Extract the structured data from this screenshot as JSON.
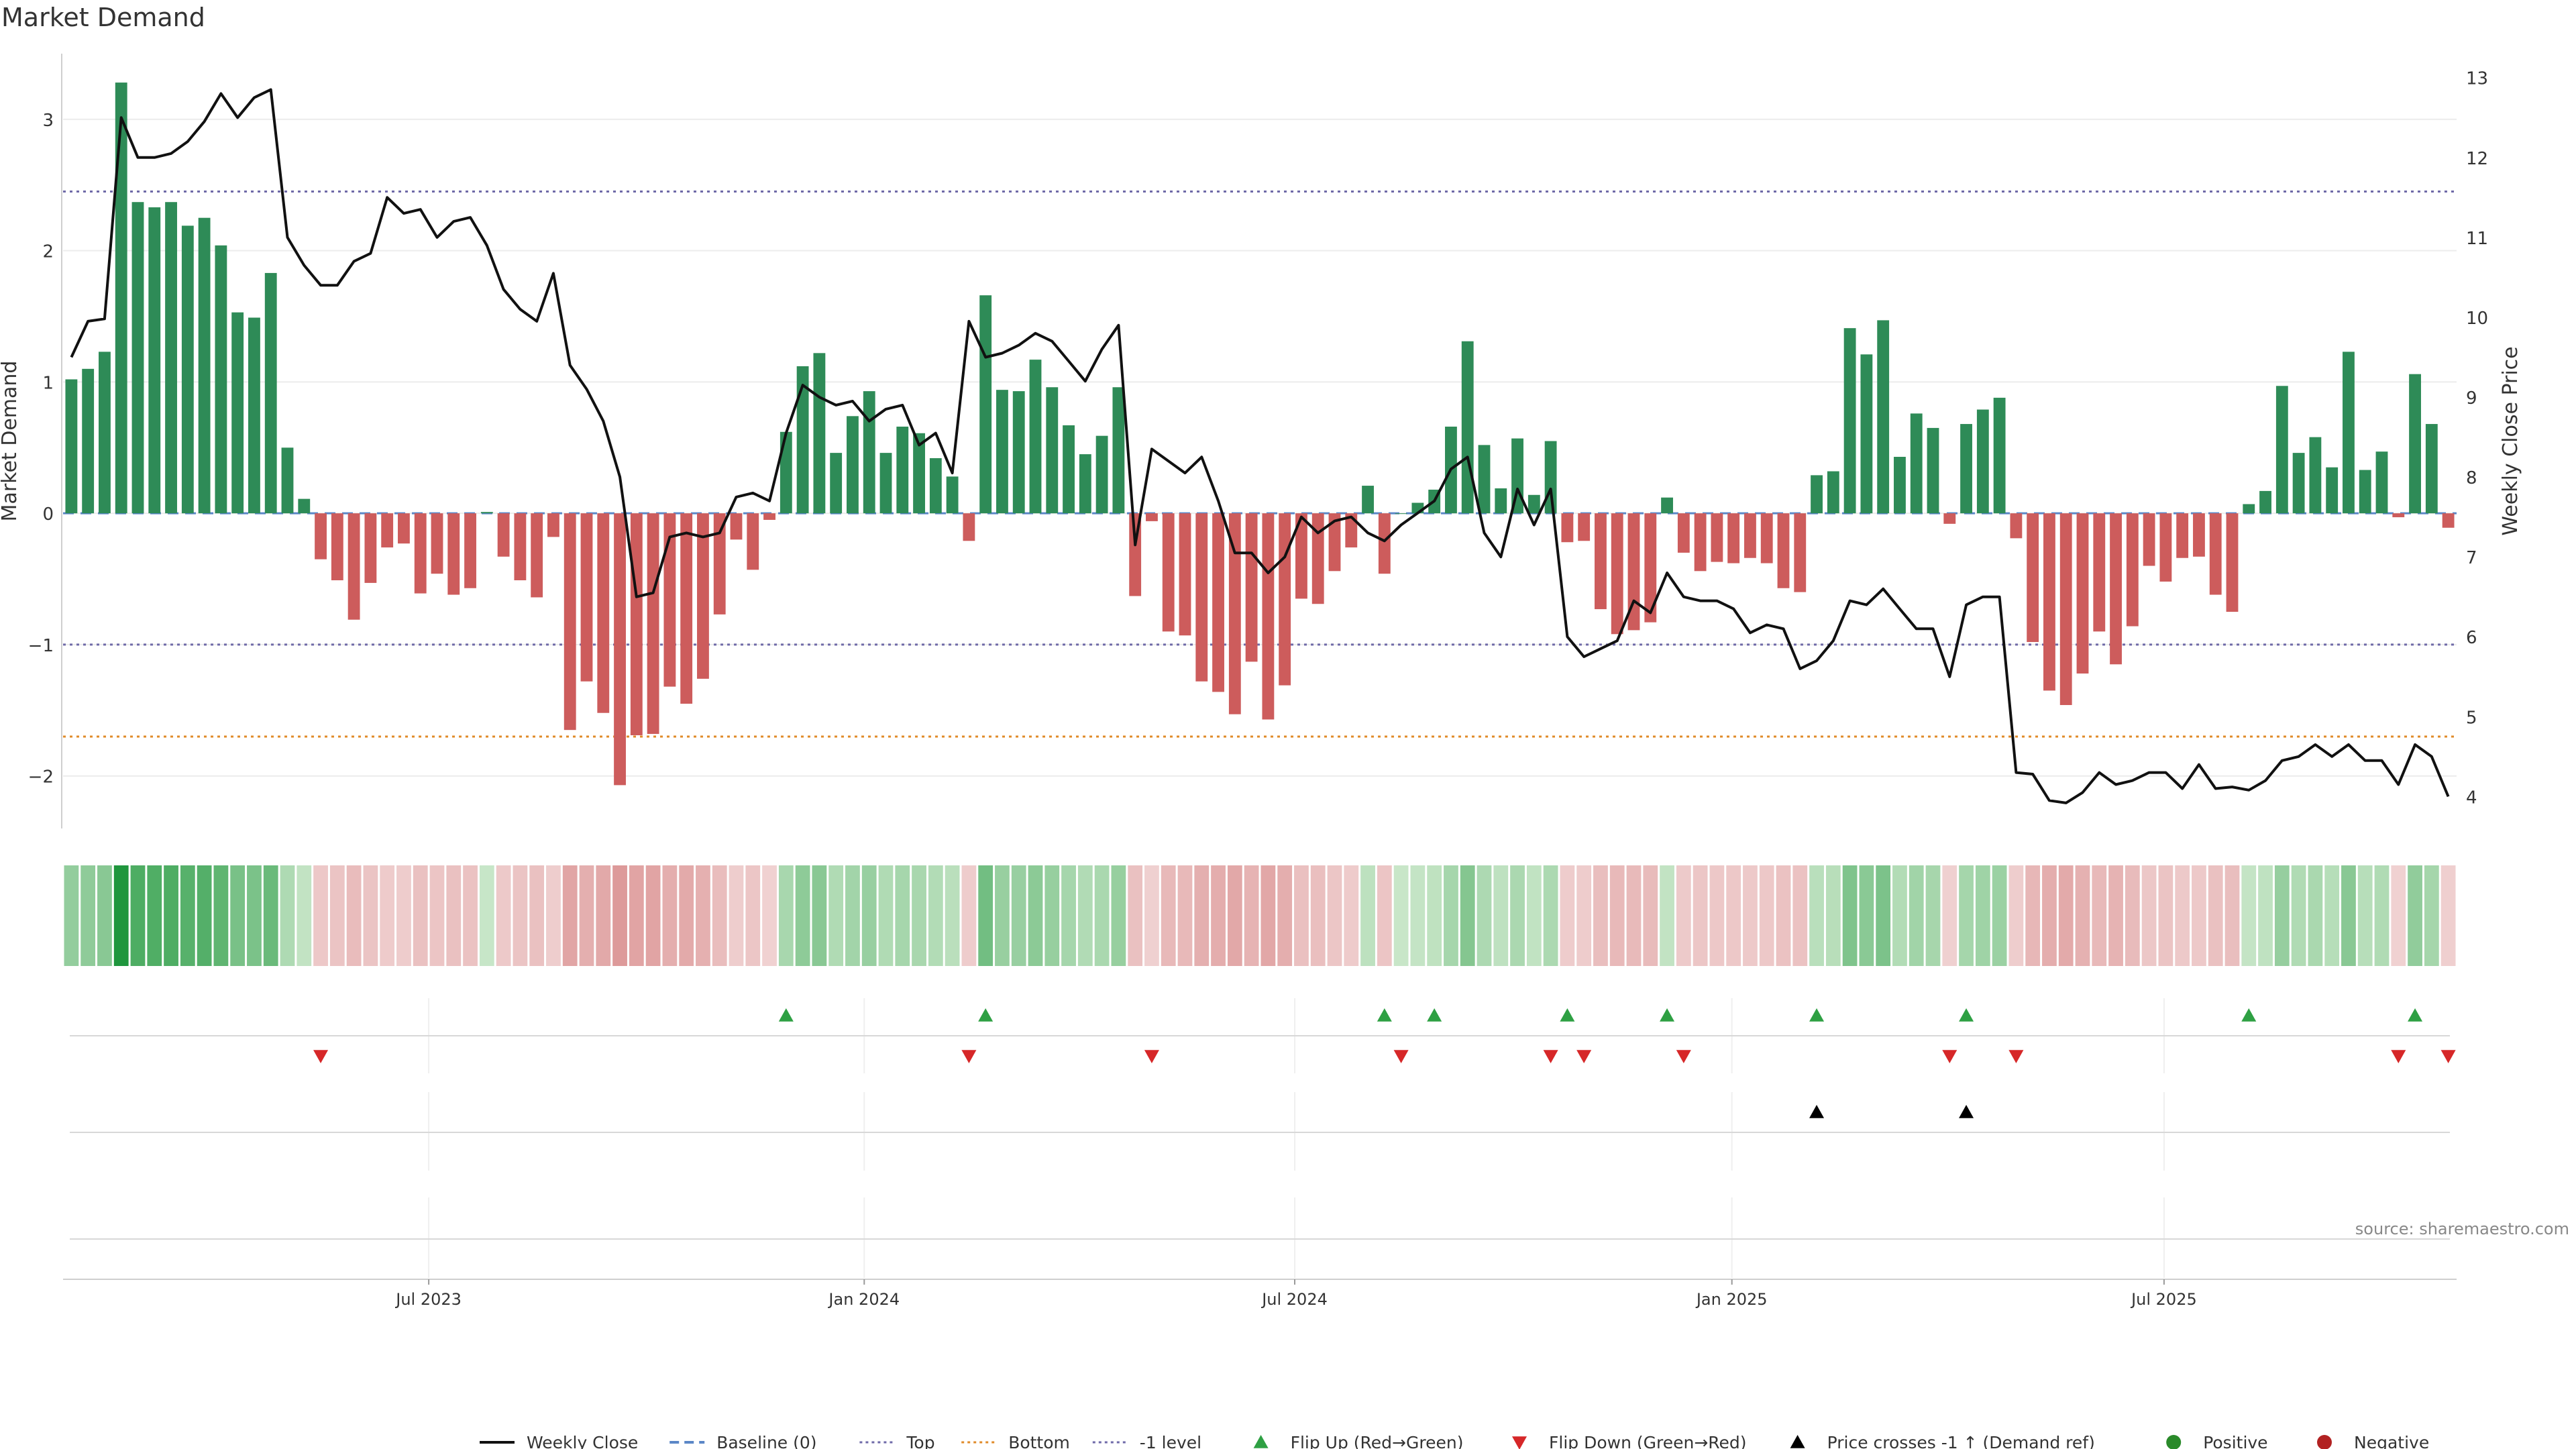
{
  "chart_data": {
    "type": "bar",
    "title": "Market Demand",
    "ylabel": "Market Demand",
    "y2label": "Weekly Close Price",
    "ylim": [
      -2.4,
      3.5
    ],
    "y2lim": [
      3.6,
      13.3
    ],
    "yticks": [
      -2,
      -1,
      0,
      1,
      2,
      3
    ],
    "y2ticks": [
      4,
      5,
      6,
      7,
      8,
      9,
      10,
      11,
      12,
      13
    ],
    "x_labels": [
      {
        "label": "Jul 2023",
        "index": 21.5
      },
      {
        "label": "Jan 2024",
        "index": 47.7
      },
      {
        "label": "Jul 2024",
        "index": 73.6
      },
      {
        "label": "Jan 2025",
        "index": 99.9
      },
      {
        "label": "Jul 2025",
        "index": 125.9
      }
    ],
    "reference_lines": {
      "baseline": 0,
      "top": 2.45,
      "bottom": -1.7,
      "minus_one": -1
    },
    "series": [
      {
        "name": "Market Demand",
        "values": [
          1.02,
          1.1,
          1.23,
          3.28,
          2.37,
          2.33,
          2.37,
          2.19,
          2.25,
          2.04,
          1.53,
          1.49,
          1.83,
          0.5,
          0.11,
          -0.35,
          -0.51,
          -0.81,
          -0.53,
          -0.26,
          -0.23,
          -0.61,
          -0.46,
          -0.62,
          -0.57,
          0.01,
          -0.33,
          -0.51,
          -0.64,
          -0.18,
          -1.65,
          -1.28,
          -1.52,
          -2.07,
          -1.69,
          -1.68,
          -1.32,
          -1.45,
          -1.26,
          -0.77,
          -0.2,
          -0.43,
          -0.05,
          0.62,
          1.12,
          1.22,
          0.46,
          0.74,
          0.93,
          0.46,
          0.66,
          0.61,
          0.42,
          0.28,
          -0.21,
          1.66,
          0.94,
          0.93,
          1.17,
          0.96,
          0.67,
          0.45,
          0.59,
          0.96,
          -0.63,
          -0.06,
          -0.9,
          -0.93,
          -1.28,
          -1.36,
          -1.53,
          -1.13,
          -1.57,
          -1.31,
          -0.65,
          -0.69,
          -0.44,
          -0.26,
          0.21,
          -0.46,
          0.0,
          0.08,
          0.18,
          0.66,
          1.31,
          0.52,
          0.19,
          0.57,
          0.14,
          0.55,
          -0.22,
          -0.21,
          -0.73,
          -0.92,
          -0.89,
          -0.83,
          0.12,
          -0.3,
          -0.44,
          -0.37,
          -0.38,
          -0.34,
          -0.38,
          -0.57,
          -0.6,
          0.29,
          0.32,
          1.41,
          1.21,
          1.47,
          0.43,
          0.76,
          0.65,
          -0.08,
          0.68,
          0.79,
          0.88,
          -0.19,
          -0.98,
          -1.35,
          -1.46,
          -1.22,
          -0.9,
          -1.15,
          -0.86,
          -0.4,
          -0.52,
          -0.34,
          -0.33,
          -0.62,
          -0.75,
          0.07,
          0.17,
          0.97,
          0.46,
          0.58,
          0.35,
          1.23,
          0.33,
          0.47,
          -0.03,
          1.06,
          0.68,
          -0.11
        ]
      },
      {
        "name": "Weekly Close",
        "values": [
          9.5,
          9.95,
          9.98,
          12.5,
          12.0,
          12.0,
          12.05,
          12.2,
          12.45,
          12.8,
          12.5,
          12.75,
          12.85,
          11.0,
          10.65,
          10.4,
          10.4,
          10.7,
          10.8,
          11.5,
          11.3,
          11.35,
          11.0,
          11.2,
          11.25,
          10.9,
          10.35,
          10.1,
          9.95,
          10.55,
          9.4,
          9.1,
          8.7,
          8.0,
          6.5,
          6.55,
          7.25,
          7.3,
          7.25,
          7.3,
          7.75,
          7.8,
          7.7,
          8.55,
          9.15,
          9.0,
          8.9,
          8.95,
          8.7,
          8.85,
          8.9,
          8.4,
          8.55,
          8.05,
          9.95,
          9.5,
          9.55,
          9.65,
          9.8,
          9.7,
          9.45,
          9.2,
          9.6,
          9.9,
          7.15,
          8.35,
          8.2,
          8.05,
          8.25,
          7.7,
          7.05,
          7.05,
          6.8,
          7.0,
          7.5,
          7.3,
          7.45,
          7.5,
          7.3,
          7.2,
          7.4,
          7.55,
          7.7,
          8.1,
          8.25,
          7.3,
          7.0,
          7.85,
          7.4,
          7.85,
          6.0,
          5.75,
          5.85,
          5.95,
          6.45,
          6.3,
          6.8,
          6.5,
          6.45,
          6.45,
          6.35,
          6.05,
          6.15,
          6.1,
          5.6,
          5.7,
          5.95,
          6.45,
          6.4,
          6.6,
          6.35,
          6.1,
          6.1,
          5.5,
          6.4,
          6.5,
          6.5,
          4.3,
          4.28,
          3.95,
          3.92,
          4.05,
          4.3,
          4.15,
          4.2,
          4.3,
          4.3,
          4.1,
          4.4,
          4.1,
          4.12,
          4.08,
          4.2,
          4.45,
          4.5,
          4.65,
          4.5,
          4.65,
          4.45,
          4.45,
          4.15,
          4.65,
          4.5,
          4.0
        ]
      }
    ],
    "flip_up_indices": [
      43,
      55,
      79,
      82,
      90,
      96,
      105,
      114,
      131,
      141
    ],
    "flip_down_indices": [
      15,
      54,
      65,
      80,
      89,
      91,
      97,
      113,
      117,
      140,
      143
    ],
    "price_cross_indices": [
      105,
      114
    ],
    "legend_position": "bottom",
    "legend": [
      {
        "label": "Weekly Close",
        "kind": "line-solid",
        "color": "#111111"
      },
      {
        "label": "Baseline (0)",
        "kind": "line-dash",
        "color": "#5b87c7"
      },
      {
        "label": "Top",
        "kind": "line-dot",
        "color": "#6f6aa8"
      },
      {
        "label": "Bottom",
        "kind": "line-dot",
        "color": "#e08b2a"
      },
      {
        "label": "-1 level",
        "kind": "line-dot",
        "color": "#6f6aa8"
      },
      {
        "label": "Flip Up (Red→Green)",
        "kind": "tri-up",
        "color": "#2ea043"
      },
      {
        "label": "Flip Down (Green→Red)",
        "kind": "tri-down",
        "color": "#d62728"
      },
      {
        "label": "Price crosses -1 ↑ (Demand ref)",
        "kind": "tri-up",
        "color": "#000000"
      },
      {
        "label": "Positive",
        "kind": "dot",
        "color": "#2a8a2a"
      },
      {
        "label": "Negative",
        "kind": "dot",
        "color": "#b22222"
      }
    ],
    "colors": {
      "positive_bar": "#2e8b57",
      "negative_bar": "#cd5c5c",
      "price_line": "#111111",
      "baseline": "#5b87c7",
      "top_line": "#6f6aa8",
      "bottom_line": "#e08b2a",
      "flip_up": "#2ea043",
      "flip_down": "#d62728",
      "cross": "#000000"
    }
  },
  "labels": {
    "title": "Market Demand",
    "source": "source: sharemaestro.com"
  }
}
